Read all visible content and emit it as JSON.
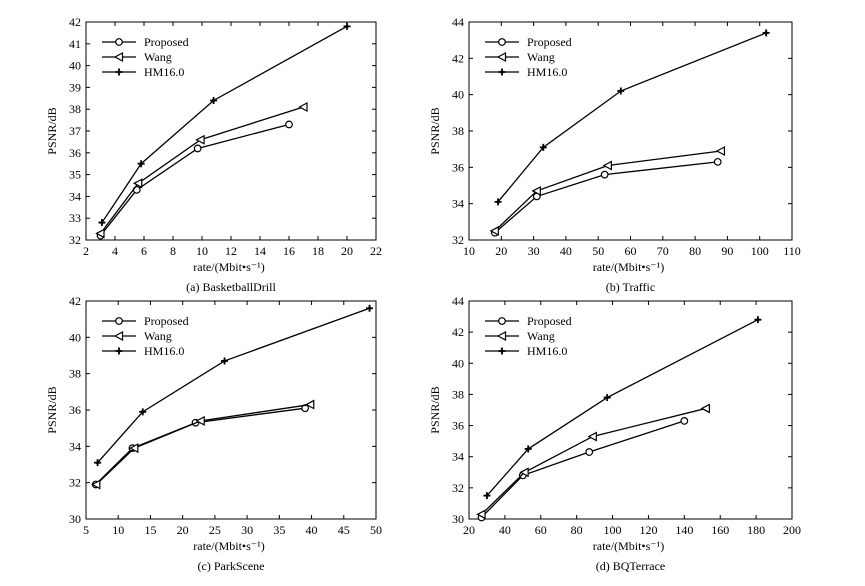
{
  "chart_data": [
    {
      "type": "line",
      "caption": "(a) BasketballDrill",
      "xlabel": "rate/(Mbit•s⁻¹)",
      "ylabel": "PSNR/dB",
      "xlim": [
        2,
        22
      ],
      "ylim": [
        32,
        42
      ],
      "xticks": [
        2,
        4,
        6,
        8,
        10,
        12,
        14,
        16,
        18,
        20,
        22
      ],
      "yticks": [
        32,
        33,
        34,
        35,
        36,
        37,
        38,
        39,
        40,
        41,
        42
      ],
      "legend_position": "top-left",
      "series": [
        {
          "name": "Proposed",
          "marker": "circle",
          "x": [
            3.0,
            5.5,
            9.7,
            16.0
          ],
          "y": [
            32.2,
            34.3,
            36.2,
            37.3
          ]
        },
        {
          "name": "Wang",
          "marker": "triangle-left",
          "x": [
            3.0,
            5.6,
            9.9,
            17.0
          ],
          "y": [
            32.3,
            34.6,
            36.6,
            38.1
          ]
        },
        {
          "name": "HM16.0",
          "marker": "plus",
          "x": [
            3.1,
            5.8,
            10.8,
            20.0
          ],
          "y": [
            32.8,
            35.5,
            38.4,
            41.8
          ]
        }
      ]
    },
    {
      "type": "line",
      "caption": "(b) Traffic",
      "xlabel": "rate/(Mbit•s⁻¹)",
      "ylabel": "PSNR/dB",
      "xlim": [
        10,
        110
      ],
      "ylim": [
        32,
        44
      ],
      "xticks": [
        10,
        20,
        30,
        40,
        50,
        60,
        70,
        80,
        90,
        100,
        110
      ],
      "yticks": [
        32,
        34,
        36,
        38,
        40,
        42,
        44
      ],
      "legend_position": "top-left",
      "series": [
        {
          "name": "Proposed",
          "marker": "circle",
          "x": [
            18,
            31,
            52,
            87
          ],
          "y": [
            32.4,
            34.4,
            35.6,
            36.3
          ]
        },
        {
          "name": "Wang",
          "marker": "triangle-left",
          "x": [
            18,
            31,
            53,
            88
          ],
          "y": [
            32.5,
            34.7,
            36.1,
            36.9
          ]
        },
        {
          "name": "HM16.0",
          "marker": "plus",
          "x": [
            19,
            33,
            57,
            102
          ],
          "y": [
            34.1,
            37.1,
            40.2,
            43.4
          ]
        }
      ]
    },
    {
      "type": "line",
      "caption": "(c)  ParkScene",
      "xlabel": "rate/(Mbit•s⁻¹)",
      "ylabel": "PSNR/dB",
      "xlim": [
        5,
        50
      ],
      "ylim": [
        30,
        42
      ],
      "xticks": [
        5,
        10,
        15,
        20,
        25,
        30,
        35,
        40,
        45,
        50
      ],
      "yticks": [
        30,
        32,
        34,
        36,
        38,
        40,
        42
      ],
      "legend_position": "top-left",
      "series": [
        {
          "name": "Proposed",
          "marker": "circle",
          "x": [
            6.5,
            12.2,
            22.0,
            39.0
          ],
          "y": [
            31.9,
            33.9,
            35.3,
            36.1
          ]
        },
        {
          "name": "Wang",
          "marker": "triangle-left",
          "x": [
            6.6,
            12.5,
            22.8,
            39.8
          ],
          "y": [
            31.9,
            33.9,
            35.4,
            36.3
          ]
        },
        {
          "name": "HM16.0",
          "marker": "plus",
          "x": [
            6.8,
            13.8,
            26.5,
            49.0
          ],
          "y": [
            33.1,
            35.9,
            38.7,
            41.6
          ]
        }
      ]
    },
    {
      "type": "line",
      "caption": "(d) BQTerrace",
      "xlabel": "rate/(Mbit•s⁻¹)",
      "ylabel": "PSNR/dB",
      "xlim": [
        20,
        200
      ],
      "ylim": [
        30,
        44
      ],
      "xticks": [
        20,
        40,
        60,
        80,
        100,
        120,
        140,
        160,
        180,
        200
      ],
      "yticks": [
        30,
        32,
        34,
        36,
        38,
        40,
        42,
        44
      ],
      "legend_position": "top-left",
      "series": [
        {
          "name": "Proposed",
          "marker": "circle",
          "x": [
            27,
            50,
            87,
            140
          ],
          "y": [
            30.1,
            32.8,
            34.3,
            36.3
          ]
        },
        {
          "name": "Wang",
          "marker": "triangle-left",
          "x": [
            27,
            51,
            89,
            152
          ],
          "y": [
            30.3,
            33.0,
            35.3,
            37.1
          ]
        },
        {
          "name": "HM16.0",
          "marker": "plus",
          "x": [
            30,
            53,
            97,
            181
          ],
          "y": [
            31.5,
            34.5,
            37.8,
            42.8
          ]
        }
      ]
    }
  ]
}
